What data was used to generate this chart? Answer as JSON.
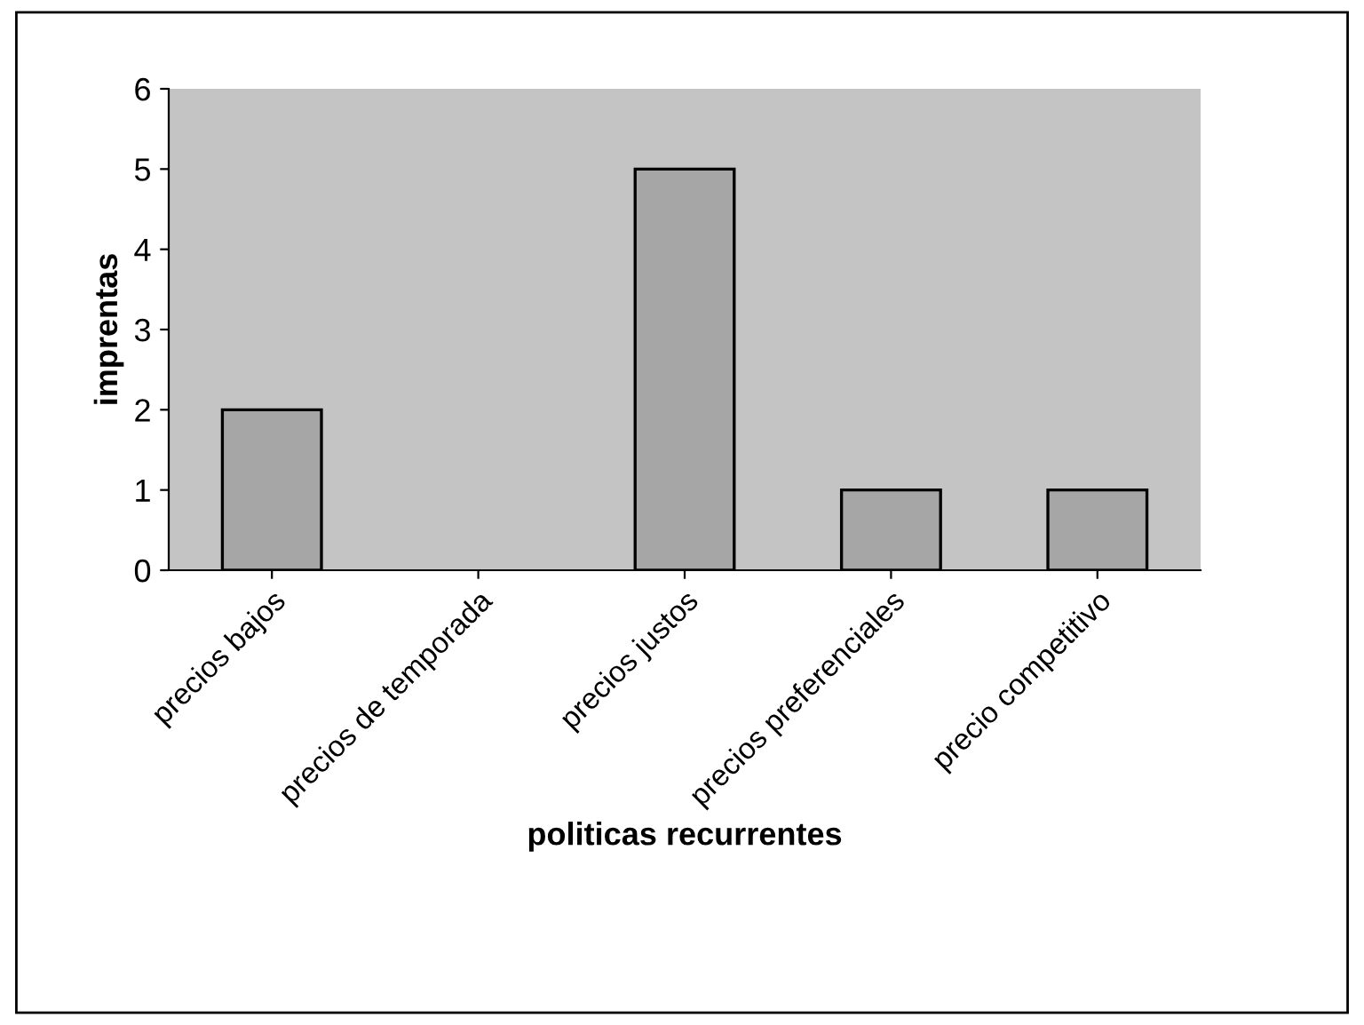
{
  "chart_data": {
    "type": "bar",
    "xlabel": "politicas recurrentes",
    "ylabel": "imprentas",
    "categories": [
      "precios bajos",
      "precios de temporada",
      "precios justos",
      "precios preferenciales",
      "precio competitivo"
    ],
    "series": [
      {
        "color": "#a6a6a6",
        "values": [
          2,
          0,
          5,
          1,
          1
        ]
      }
    ],
    "ylim": [
      0,
      6
    ],
    "yticks": [
      0,
      1,
      2,
      3,
      4,
      5,
      6
    ],
    "grid": false,
    "legend": false
  }
}
